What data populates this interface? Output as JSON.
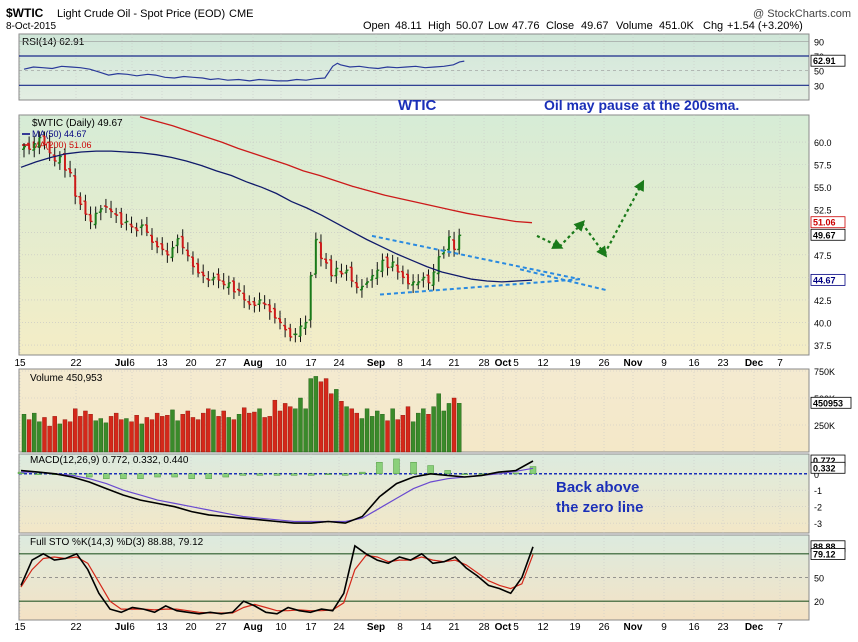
{
  "header": {
    "symbol": "$WTIC",
    "title": "Light Crude Oil - Spot Price (EOD)",
    "exchange": "CME",
    "date": "8-Oct-2015",
    "open_label": "Open",
    "open": "48.11",
    "high_label": "High",
    "high": "50.07",
    "low_label": "Low",
    "low": "47.76",
    "close_label": "Close",
    "close": "49.67",
    "volume_label": "Volume",
    "volume": "451.0K",
    "chg_label": "Chg",
    "chg": "+1.54 (+3.20%)",
    "watermark": "@ StockCharts.com"
  },
  "annotations": {
    "wtic": "WTIC",
    "oil_pause": "Oil may pause at the 200sma.",
    "back_above_1": "Back above",
    "back_above_2": "the zero line"
  },
  "x_axis": {
    "labels": [
      "15",
      "22",
      "Jul",
      "6",
      "13",
      "20",
      "27",
      "Aug",
      "10",
      "17",
      "24",
      "Sep",
      "8",
      "14",
      "21",
      "28",
      "Oct",
      "5",
      "12",
      "19",
      "26",
      "Nov",
      "9",
      "16",
      "23",
      "Dec",
      "7"
    ]
  },
  "chart_data": [
    {
      "type": "line",
      "panel": "rsi",
      "legend": "RSI(14) 62.91",
      "yticks": [
        90,
        70,
        50,
        30
      ],
      "ylim": [
        10,
        100
      ],
      "overbought": 70,
      "oversold": 30,
      "last_label": "62.91",
      "series": [
        {
          "name": "RSI(14)",
          "x": [
            0,
            6,
            12,
            18,
            24,
            30,
            36,
            42,
            48,
            54,
            60,
            66,
            72,
            79,
            84,
            90,
            96,
            102,
            108,
            114,
            119,
            124,
            130,
            137,
            144,
            150,
            156,
            162,
            168,
            174,
            180,
            186,
            192,
            197,
            200,
            202,
            208,
            214,
            220,
            226,
            232,
            238,
            244,
            250,
            256,
            262,
            268,
            274,
            278,
            281
          ],
          "values": [
            52,
            55,
            54,
            53,
            56,
            55,
            54,
            52,
            48,
            44,
            46,
            45,
            43,
            45,
            44,
            41,
            40,
            42,
            41,
            40,
            38,
            39,
            37,
            38,
            36,
            38,
            37,
            36,
            36,
            38,
            37,
            39,
            40,
            56,
            60,
            58,
            55,
            56,
            54,
            53,
            55,
            54,
            55,
            56,
            54,
            55,
            56,
            58,
            62,
            63
          ]
        }
      ]
    },
    {
      "type": "candlestick",
      "panel": "price",
      "legend": [
        "$WTIC (Daily) 49.67",
        "MA(50) 44.67",
        "MA(200) 51.06"
      ],
      "yticks": [
        60.0,
        57.5,
        55.0,
        52.5,
        50.0,
        47.5,
        45.0,
        42.5,
        40.0,
        37.5
      ],
      "yticklabels": [
        "60.0",
        "57.5",
        "55.0",
        "52.5",
        "50.0",
        "47.5",
        "45.0",
        "42.5",
        "40.0",
        "37.5"
      ],
      "ylim": [
        36.4,
        63.0
      ],
      "last_labels": [
        {
          "text": "51.06",
          "value": 51.06,
          "color": "#cc0000"
        },
        {
          "text": "49.67",
          "value": 49.67,
          "color": "#000000"
        },
        {
          "text": "44.67",
          "value": 44.67,
          "color": "#000080"
        }
      ],
      "closes": [
        59.5,
        59.2,
        59.8,
        60.5,
        59.7,
        58.8,
        57.9,
        58.4,
        56.9,
        56.6,
        54.0,
        53.1,
        52.0,
        51.2,
        52.1,
        52.6,
        52.8,
        52.3,
        51.9,
        50.9,
        51.2,
        50.6,
        50.2,
        50.8,
        50.0,
        48.9,
        48.4,
        48.1,
        47.5,
        48.3,
        49.3,
        48.3,
        47.4,
        46.2,
        45.5,
        45.2,
        44.7,
        45.0,
        44.7,
        44.2,
        44.4,
        43.4,
        43.5,
        42.5,
        42.0,
        41.9,
        42.5,
        42.0,
        41.2,
        40.5,
        40.0,
        39.2,
        38.4,
        38.7,
        39.6,
        40.0,
        45.2,
        49.2,
        47.1,
        46.6,
        45.2,
        46.0,
        45.4,
        45.8,
        44.6,
        43.9,
        44.0,
        44.5,
        45.2,
        45.8,
        46.9,
        46.1,
        46.7,
        45.6,
        45.0,
        44.3,
        44.5,
        44.5,
        45.0,
        44.4,
        45.6,
        47.3,
        48.0,
        49.5,
        48.1,
        49.67
      ],
      "ma50": [
        57.2,
        57.8,
        58.3,
        58.7,
        58.9,
        59.0,
        59.0,
        58.9,
        58.8,
        58.6,
        58.3,
        57.9,
        57.4,
        56.8,
        56.3,
        55.6,
        55.0,
        54.3,
        53.4,
        52.7,
        51.9,
        51.0,
        50.1,
        49.2,
        48.4,
        47.6,
        46.9,
        46.2,
        45.6,
        45.2,
        44.8,
        44.6,
        44.5,
        44.6,
        44.7
      ],
      "ma200": [
        62.8,
        62.3,
        61.8,
        61.2,
        60.6,
        60.0,
        59.3,
        58.7,
        58.1,
        57.5,
        56.8,
        56.3,
        55.7,
        55.1,
        54.6,
        54.1,
        53.7,
        53.3,
        52.9,
        52.5,
        52.1,
        51.8,
        51.5,
        51.2,
        51.06
      ],
      "projection_points": [
        [
          49.6,
          0
        ],
        [
          48.4,
          3
        ],
        [
          51.0,
          6
        ],
        [
          47.6,
          9
        ],
        [
          55.4,
          14
        ]
      ]
    },
    {
      "type": "bar",
      "panel": "volume",
      "legend": "Volume 450,953",
      "yticks": [
        750000,
        500000,
        250000
      ],
      "yticklabels": [
        "750K",
        "500K",
        "250K"
      ],
      "ylim": [
        0,
        750000
      ],
      "last_label": "450953",
      "values": [
        350000,
        300000,
        360000,
        280000,
        320000,
        240000,
        330000,
        260000,
        300000,
        280000,
        400000,
        330000,
        380000,
        350000,
        290000,
        310000,
        270000,
        330000,
        360000,
        300000,
        310000,
        280000,
        340000,
        260000,
        320000,
        300000,
        360000,
        330000,
        340000,
        390000,
        290000,
        350000,
        380000,
        320000,
        300000,
        360000,
        400000,
        390000,
        330000,
        380000,
        320000,
        300000,
        350000,
        410000,
        360000,
        370000,
        400000,
        320000,
        330000,
        480000,
        380000,
        450000,
        420000,
        400000,
        500000,
        400000,
        680000,
        700000,
        650000,
        680000,
        540000,
        580000,
        470000,
        420000,
        400000,
        360000,
        310000,
        400000,
        330000,
        380000,
        350000,
        290000,
        400000,
        300000,
        340000,
        420000,
        280000,
        360000,
        400000,
        350000,
        420000,
        540000,
        380000,
        450000,
        500000,
        450953
      ]
    },
    {
      "type": "line",
      "panel": "macd",
      "legend": [
        "MACD(12,26,9) 0.772, 0.332, 0.440"
      ],
      "yticks": [
        0,
        -1,
        -2,
        -3
      ],
      "yticklabels": [
        "0",
        "-1",
        "-2",
        "-3"
      ],
      "ylim": [
        -3.6,
        1.2
      ],
      "last_labels": [
        {
          "text": "0.772",
          "value": 0.772
        },
        {
          "text": "0.332",
          "value": 0.332
        }
      ],
      "macd": [
        0.2,
        0.1,
        0.0,
        -0.2,
        -0.5,
        -0.9,
        -1.3,
        -1.6,
        -1.8,
        -2.0,
        -2.3,
        -2.5,
        -2.6,
        -2.7,
        -2.8,
        -2.9,
        -3.0,
        -3.0,
        -2.9,
        -3.0,
        -2.6,
        -1.4,
        -0.6,
        -0.2,
        0.0,
        -0.1,
        -0.2,
        -0.1,
        0.1,
        0.2,
        0.772
      ],
      "signal": [
        0.1,
        0.1,
        0.0,
        -0.1,
        -0.3,
        -0.6,
        -1.0,
        -1.3,
        -1.6,
        -1.8,
        -2.0,
        -2.2,
        -2.4,
        -2.6,
        -2.7,
        -2.8,
        -2.9,
        -2.9,
        -2.9,
        -2.9,
        -2.7,
        -2.1,
        -1.5,
        -0.9,
        -0.5,
        -0.3,
        -0.2,
        -0.1,
        0.0,
        0.15,
        0.332
      ],
      "hist": [
        0.1,
        0.0,
        0.0,
        -0.1,
        -0.2,
        -0.3,
        -0.3,
        -0.3,
        -0.2,
        -0.2,
        -0.3,
        -0.3,
        -0.2,
        -0.1,
        -0.1,
        -0.1,
        -0.1,
        -0.1,
        0.0,
        -0.1,
        0.1,
        0.7,
        0.9,
        0.7,
        0.5,
        0.2,
        0.0,
        0.0,
        0.1,
        0.05,
        0.44
      ]
    },
    {
      "type": "line",
      "panel": "stochastic",
      "legend": "Full STO %K(14,3) %D(3) 88.88, 79.12",
      "yticks": [
        80,
        50,
        20
      ],
      "yticklabels": [
        "80",
        "50",
        "20"
      ],
      "ylim": [
        0,
        100
      ],
      "last_labels": [
        {
          "text": "88.88",
          "value": 88.88
        },
        {
          "text": "79.12",
          "value": 79.12
        }
      ],
      "k": [
        40,
        72,
        80,
        72,
        74,
        80,
        60,
        30,
        10,
        6,
        12,
        10,
        6,
        14,
        8,
        6,
        4,
        6,
        4,
        6,
        20,
        14,
        6,
        4,
        12,
        8,
        6,
        10,
        8,
        30,
        90,
        80,
        72,
        68,
        76,
        72,
        80,
        68,
        70,
        76,
        62,
        52,
        40,
        36,
        30,
        50,
        88.88
      ],
      "d": [
        38,
        60,
        74,
        76,
        74,
        76,
        68,
        44,
        20,
        10,
        10,
        10,
        9,
        10,
        10,
        8,
        6,
        5,
        5,
        5,
        12,
        16,
        12,
        8,
        8,
        9,
        8,
        8,
        9,
        18,
        60,
        78,
        76,
        70,
        72,
        72,
        76,
        72,
        70,
        72,
        66,
        56,
        46,
        40,
        36,
        42,
        79.12
      ]
    }
  ]
}
